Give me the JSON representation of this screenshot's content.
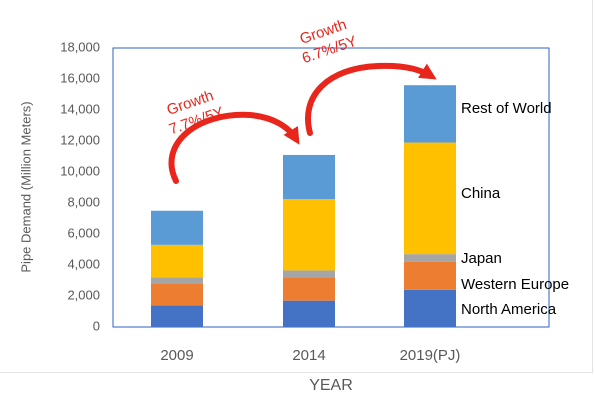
{
  "chart_data": {
    "type": "bar",
    "stacked": true,
    "categories": [
      "2009",
      "2014",
      "2019(PJ)"
    ],
    "series": [
      {
        "name": "North America",
        "values": [
          1400,
          1700,
          2400
        ],
        "color": "#4472c4"
      },
      {
        "name": "Western Europe",
        "values": [
          1400,
          1500,
          1800
        ],
        "color": "#ed7d31"
      },
      {
        "name": "Japan",
        "values": [
          400,
          450,
          500
        ],
        "color": "#a5a5a5"
      },
      {
        "name": "China",
        "values": [
          2100,
          4600,
          7200
        ],
        "color": "#ffc000"
      },
      {
        "name": "Rest of World",
        "values": [
          2200,
          2850,
          3700
        ],
        "color": "#5b9bd5"
      }
    ],
    "xlabel": "YEAR",
    "ylabel": "Pipe Demand (Million Meters)",
    "ylim": [
      0,
      18000
    ],
    "yticks": [
      "0",
      "2,000",
      "4,000",
      "6,000",
      "8,000",
      "10,000",
      "12,000",
      "14,000",
      "16,000",
      "18,000"
    ],
    "legend_placement": "right of last bar",
    "annotations": [
      {
        "line1": "Growth",
        "line2": "7.7%/5Y"
      },
      {
        "line1": "Growth",
        "line2": "6.7%/5Y"
      }
    ],
    "annotation_color": "#e8261c",
    "arrow_color": "#e8261c",
    "plot_border_color": "#2e62c6"
  }
}
